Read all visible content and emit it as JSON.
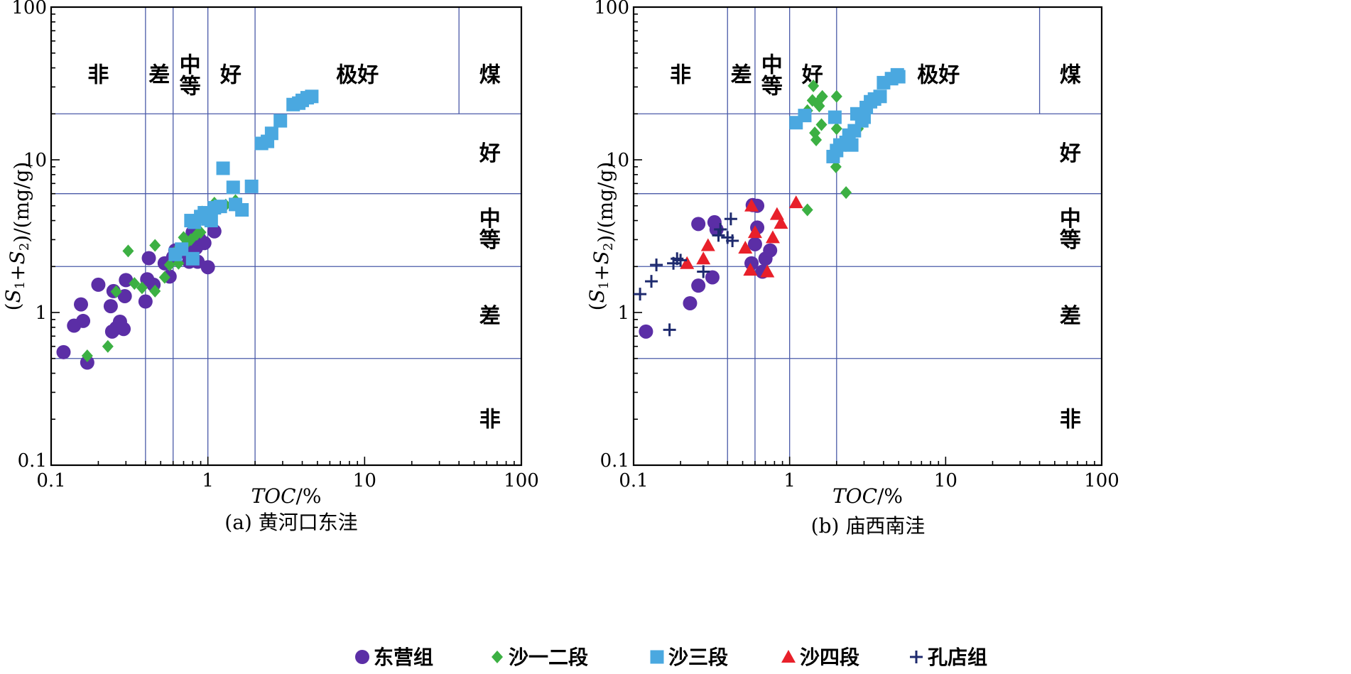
{
  "legend": [
    {
      "label": "东营组",
      "marker": "circle",
      "color": "#5b2ea6"
    },
    {
      "label": "沙一二段",
      "marker": "diamond",
      "color": "#3cb043"
    },
    {
      "label": "沙三段",
      "marker": "square",
      "color": "#4aa8e0"
    },
    {
      "label": "沙四段",
      "marker": "triangle",
      "color": "#e8202a"
    },
    {
      "label": "孔店组",
      "marker": "cross",
      "color": "#1e2a6e"
    }
  ],
  "chart_data": [
    {
      "type": "scatter",
      "caption": "(a) 黄河口东洼",
      "xlabel": "TOC/%",
      "ylabel": "(S1+S2)/(mg/g)",
      "xscale": "log",
      "yscale": "log",
      "xlim": [
        0.1,
        100
      ],
      "ylim": [
        0.1,
        100
      ],
      "x_ticks": [
        "0.1",
        "1",
        "10",
        "100"
      ],
      "y_ticks": [
        "0.1",
        "1",
        "10",
        "100"
      ],
      "toc_boundaries": [
        0.4,
        0.6,
        1.0,
        2.0
      ],
      "s_boundaries": [
        0.5,
        2,
        6,
        20
      ],
      "coal_boundary_toc": 40,
      "x_zone_labels": [
        {
          "text": "非",
          "x": 0.2
        },
        {
          "text": "差",
          "x": 0.49
        },
        {
          "text": "中\n等",
          "x": 0.77
        },
        {
          "text": "好",
          "x": 1.4
        },
        {
          "text": "极好",
          "x": 9
        },
        {
          "text": "煤",
          "x": 63
        }
      ],
      "y_zone_labels": [
        {
          "text": "好",
          "y": 11
        },
        {
          "text": "中\n等",
          "y": 3.5
        },
        {
          "text": "差",
          "y": 0.95
        },
        {
          "text": "非",
          "y": 0.2
        }
      ],
      "series": [
        {
          "name": "东营组",
          "points": [
            [
              0.12,
              0.55
            ],
            [
              0.14,
              0.82
            ],
            [
              0.155,
              1.13
            ],
            [
              0.16,
              0.88
            ],
            [
              0.17,
              0.47
            ],
            [
              0.2,
              1.52
            ],
            [
              0.24,
              1.1
            ],
            [
              0.245,
              0.75
            ],
            [
              0.25,
              1.38
            ],
            [
              0.26,
              0.79
            ],
            [
              0.275,
              0.87
            ],
            [
              0.29,
              0.78
            ],
            [
              0.295,
              1.28
            ],
            [
              0.3,
              1.63
            ],
            [
              0.4,
              1.18
            ],
            [
              0.41,
              1.65
            ],
            [
              0.42,
              2.27
            ],
            [
              0.45,
              1.52
            ],
            [
              0.53,
              2.1
            ],
            [
              0.57,
              1.72
            ],
            [
              0.6,
              2.3
            ],
            [
              0.62,
              2.55
            ],
            [
              0.7,
              2.5
            ],
            [
              0.76,
              2.15
            ],
            [
              0.78,
              2.7
            ],
            [
              0.8,
              3.35
            ],
            [
              0.84,
              2.65
            ],
            [
              0.86,
              2.15
            ],
            [
              0.88,
              3.05
            ],
            [
              0.95,
              2.85
            ],
            [
              1.0,
              1.98
            ],
            [
              1.1,
              3.4
            ]
          ]
        },
        {
          "name": "沙一二段",
          "points": [
            [
              0.17,
              0.52
            ],
            [
              0.23,
              0.6
            ],
            [
              0.26,
              1.37
            ],
            [
              0.31,
              2.53
            ],
            [
              0.34,
              1.55
            ],
            [
              0.38,
              1.45
            ],
            [
              0.46,
              2.75
            ],
            [
              0.46,
              1.38
            ],
            [
              0.53,
              1.7
            ],
            [
              0.57,
              2.05
            ],
            [
              0.62,
              2.5
            ],
            [
              0.65,
              2.1
            ],
            [
              0.7,
              3.1
            ],
            [
              0.72,
              2.8
            ],
            [
              0.78,
              3.0
            ],
            [
              0.85,
              3.25
            ],
            [
              0.9,
              3.35
            ],
            [
              0.92,
              4.55
            ],
            [
              1.05,
              4.4
            ],
            [
              1.1,
              5.2
            ],
            [
              1.3,
              5.05
            ],
            [
              1.5,
              5.4
            ]
          ]
        },
        {
          "name": "沙三段",
          "points": [
            [
              0.62,
              2.4
            ],
            [
              0.68,
              2.6
            ],
            [
              0.78,
              4.0
            ],
            [
              0.8,
              2.25
            ],
            [
              0.82,
              3.9
            ],
            [
              0.9,
              4.25
            ],
            [
              0.95,
              4.5
            ],
            [
              1.0,
              4.1
            ],
            [
              1.05,
              4.0
            ],
            [
              1.1,
              4.85
            ],
            [
              1.2,
              4.95
            ],
            [
              1.25,
              8.8
            ],
            [
              1.45,
              6.6
            ],
            [
              1.5,
              5.1
            ],
            [
              1.65,
              4.7
            ],
            [
              1.9,
              6.7
            ],
            [
              2.2,
              12.8
            ],
            [
              2.4,
              13.2
            ],
            [
              2.55,
              14.9
            ],
            [
              2.9,
              18.0
            ],
            [
              3.5,
              23.0
            ],
            [
              3.8,
              23.5
            ],
            [
              4.0,
              24.5
            ],
            [
              4.3,
              25.5
            ],
            [
              4.6,
              26.0
            ]
          ]
        }
      ]
    },
    {
      "type": "scatter",
      "caption": "(b) 庙西南洼",
      "xlabel": "TOC/%",
      "ylabel": "(S1+S2)/(mg/g)",
      "xscale": "log",
      "yscale": "log",
      "xlim": [
        0.1,
        100
      ],
      "ylim": [
        0.1,
        100
      ],
      "x_ticks": [
        "0.1",
        "1",
        "10",
        "100"
      ],
      "y_ticks": [
        "0.1",
        "1",
        "10",
        "100"
      ],
      "toc_boundaries": [
        0.4,
        0.6,
        1.0,
        2.0
      ],
      "s_boundaries": [
        0.5,
        2,
        6,
        20
      ],
      "coal_boundary_toc": 40,
      "x_zone_labels": [
        {
          "text": "非",
          "x": 0.2
        },
        {
          "text": "差",
          "x": 0.49
        },
        {
          "text": "中\n等",
          "x": 0.77
        },
        {
          "text": "好",
          "x": 1.4
        },
        {
          "text": "极好",
          "x": 9
        },
        {
          "text": "煤",
          "x": 63
        }
      ],
      "y_zone_labels": [
        {
          "text": "好",
          "y": 11
        },
        {
          "text": "中\n等",
          "y": 3.5
        },
        {
          "text": "差",
          "y": 0.95
        },
        {
          "text": "非",
          "y": 0.2
        }
      ],
      "series": [
        {
          "name": "东营组",
          "points": [
            [
              0.12,
              0.75
            ],
            [
              0.23,
              1.15
            ],
            [
              0.26,
              1.5
            ],
            [
              0.26,
              3.8
            ],
            [
              0.32,
              1.7
            ],
            [
              0.33,
              3.9
            ],
            [
              0.34,
              3.5
            ],
            [
              0.57,
              2.1
            ],
            [
              0.58,
              5.05
            ],
            [
              0.6,
              2.8
            ],
            [
              0.62,
              3.6
            ],
            [
              0.62,
              5.0
            ],
            [
              0.67,
              1.85
            ],
            [
              0.7,
              2.25
            ],
            [
              0.75,
              2.55
            ]
          ]
        },
        {
          "name": "沙一二段",
          "points": [
            [
              1.3,
              4.7
            ],
            [
              1.3,
              21.0
            ],
            [
              1.4,
              24.5
            ],
            [
              1.42,
              30.5
            ],
            [
              1.45,
              15.0
            ],
            [
              1.48,
              13.5
            ],
            [
              1.5,
              23.5
            ],
            [
              1.55,
              22.5
            ],
            [
              1.6,
              17.0
            ],
            [
              1.62,
              26.0
            ],
            [
              1.98,
              9.0
            ],
            [
              2.0,
              26.0
            ],
            [
              2.0,
              16.0
            ],
            [
              2.3,
              6.1
            ],
            [
              2.5,
              15.0
            ],
            [
              2.75,
              16.0
            ]
          ]
        },
        {
          "name": "沙三段",
          "points": [
            [
              1.1,
              17.5
            ],
            [
              1.25,
              19.5
            ],
            [
              1.9,
              10.5
            ],
            [
              1.95,
              19.0
            ],
            [
              2.0,
              11.5
            ],
            [
              2.1,
              12.5
            ],
            [
              2.3,
              13.0
            ],
            [
              2.4,
              14.5
            ],
            [
              2.5,
              12.5
            ],
            [
              2.6,
              15.5
            ],
            [
              2.7,
              20.0
            ],
            [
              2.9,
              18.0
            ],
            [
              3.0,
              19.0
            ],
            [
              3.1,
              22.0
            ],
            [
              3.3,
              24.0
            ],
            [
              3.5,
              25.0
            ],
            [
              3.8,
              26.0
            ],
            [
              4.0,
              32.0
            ],
            [
              4.5,
              34.0
            ],
            [
              4.9,
              36.0
            ],
            [
              5.0,
              35.0
            ]
          ]
        },
        {
          "name": "沙四段",
          "points": [
            [
              0.22,
              2.1
            ],
            [
              0.28,
              2.25
            ],
            [
              0.3,
              2.75
            ],
            [
              0.52,
              2.65
            ],
            [
              0.56,
              1.9
            ],
            [
              0.57,
              5.0
            ],
            [
              0.6,
              3.35
            ],
            [
              0.72,
              1.85
            ],
            [
              0.78,
              3.1
            ],
            [
              0.83,
              4.4
            ],
            [
              0.88,
              3.85
            ],
            [
              1.1,
              5.25
            ]
          ]
        },
        {
          "name": "孔店组",
          "points": [
            [
              0.11,
              1.32
            ],
            [
              0.13,
              1.6
            ],
            [
              0.14,
              2.05
            ],
            [
              0.17,
              0.77
            ],
            [
              0.18,
              2.1
            ],
            [
              0.19,
              2.25
            ],
            [
              0.2,
              2.2
            ],
            [
              0.28,
              1.85
            ],
            [
              0.35,
              3.2
            ],
            [
              0.36,
              3.5
            ],
            [
              0.4,
              3.1
            ],
            [
              0.42,
              4.1
            ],
            [
              0.43,
              2.95
            ]
          ]
        }
      ]
    }
  ]
}
